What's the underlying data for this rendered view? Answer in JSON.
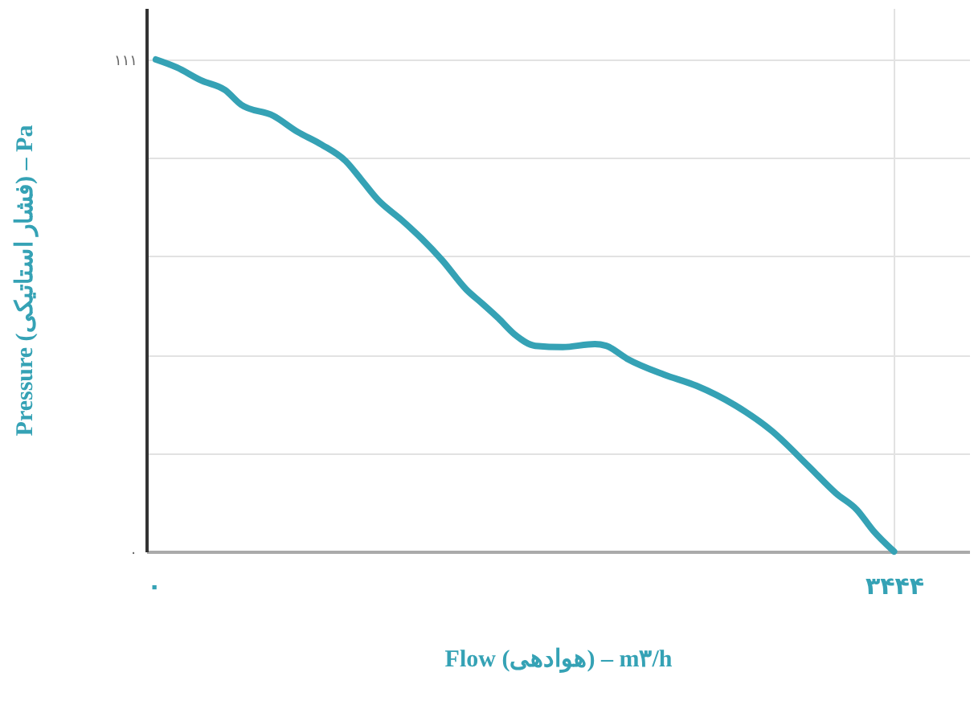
{
  "chart_data": {
    "type": "line",
    "xlabel": "Flow (هوادهی) – m۳/h",
    "ylabel": "Pressure (فشار استاتیکی) – Pa",
    "x": [
      44,
      141,
      252,
      363,
      437,
      585,
      696,
      807,
      918,
      992,
      1066,
      1178,
      1266,
      1363,
      1474,
      1548,
      1622,
      1696,
      1792,
      1918,
      2066,
      2118,
      2214,
      2385,
      2533,
      2711,
      2881,
      3051,
      3177,
      3273,
      3348,
      3444
    ],
    "series": [
      {
        "color": "#35a2b5",
        "values": [
          111.0,
          109.2,
          106.3,
          104.1,
          100.8,
          98.3,
          94.7,
          91.8,
          88.1,
          83.8,
          79.4,
          74.7,
          70.7,
          65.7,
          59.1,
          55.9,
          52.6,
          49.0,
          46.4,
          46.1,
          46.8,
          46.4,
          43.5,
          39.9,
          37.4,
          33.0,
          27.2,
          19.2,
          13.1,
          9.4,
          4.7,
          0
        ]
      }
    ],
    "xlim": [
      0,
      3790
    ],
    "ylim": [
      0,
      122.6
    ],
    "xticks": [
      {
        "value": 0,
        "label": "۰"
      },
      {
        "value": 3444,
        "label": "۳۴۴۴"
      }
    ],
    "yticks": [
      {
        "value": 0,
        "label": "۰"
      },
      {
        "value": 22.2,
        "label": null
      },
      {
        "value": 44.4,
        "label": null
      },
      {
        "value": 66.6,
        "label": null
      },
      {
        "value": 88.8,
        "label": null
      },
      {
        "value": 111,
        "label": "۱۱۱"
      }
    ],
    "grid": true,
    "marker": "none",
    "line_style": "solid"
  }
}
